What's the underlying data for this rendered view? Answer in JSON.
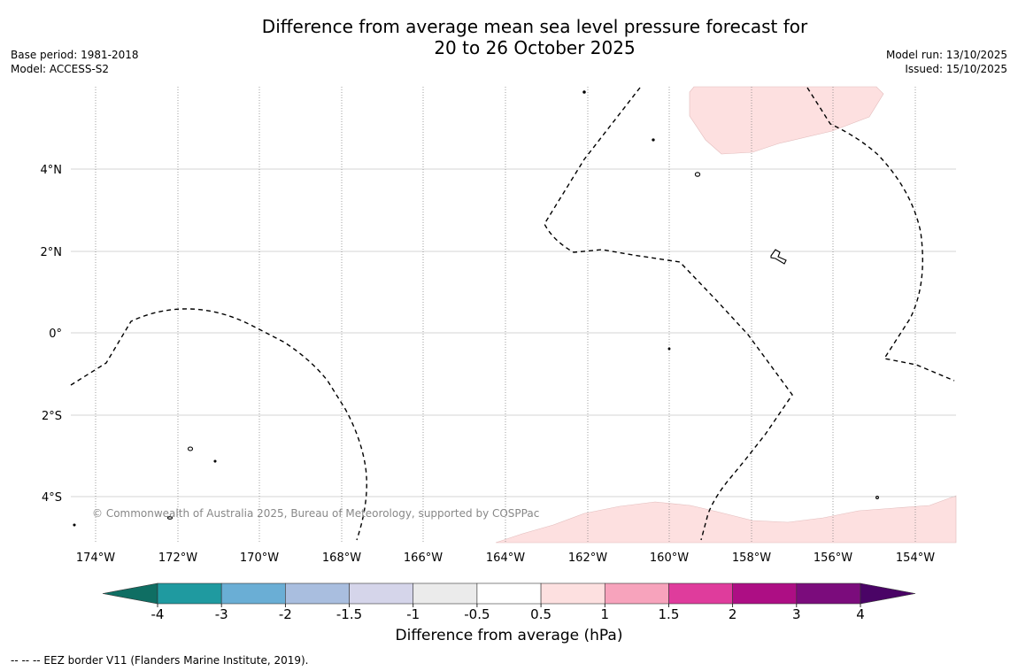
{
  "title_line1": "Difference from average mean sea level pressure forecast for",
  "title_line2": "20 to 26 October 2025",
  "base_period": "Base period: 1981-2018",
  "model": "Model: ACCESS-S2",
  "model_run": "Model run: 13/10/2025",
  "issued": "Issued: 15/10/2025",
  "copyright": "© Commonwealth of Australia 2025, Bureau of Meteorology, supported by COSPPac",
  "lon_labels": [
    "174°W",
    "172°W",
    "170°W",
    "168°W",
    "166°W",
    "164°W",
    "162°W",
    "160°W",
    "158°W",
    "156°W",
    "154°W"
  ],
  "lat_labels": [
    "4°N",
    "2°N",
    "0°",
    "2°S",
    "4°S"
  ],
  "colorbar": {
    "label": "Difference from average (hPa)",
    "ticks": [
      "-4",
      "-3",
      "-2",
      "-1.5",
      "-1",
      "-0.5",
      "0.5",
      "1",
      "1.5",
      "2",
      "3",
      "4"
    ],
    "colors": [
      "#0f6e63",
      "#1f9aa0",
      "#6aaed5",
      "#a9bedf",
      "#d5d5ea",
      "#ebebeb",
      "#ffffff",
      "#fde0e0",
      "#f7a3bc",
      "#df3c9c",
      "#ad0e84",
      "#7b0c7c",
      "#4a0466"
    ]
  },
  "eez_note": "--  --  -- EEZ border V11 (Flanders Marine Institute, 2019)."
}
